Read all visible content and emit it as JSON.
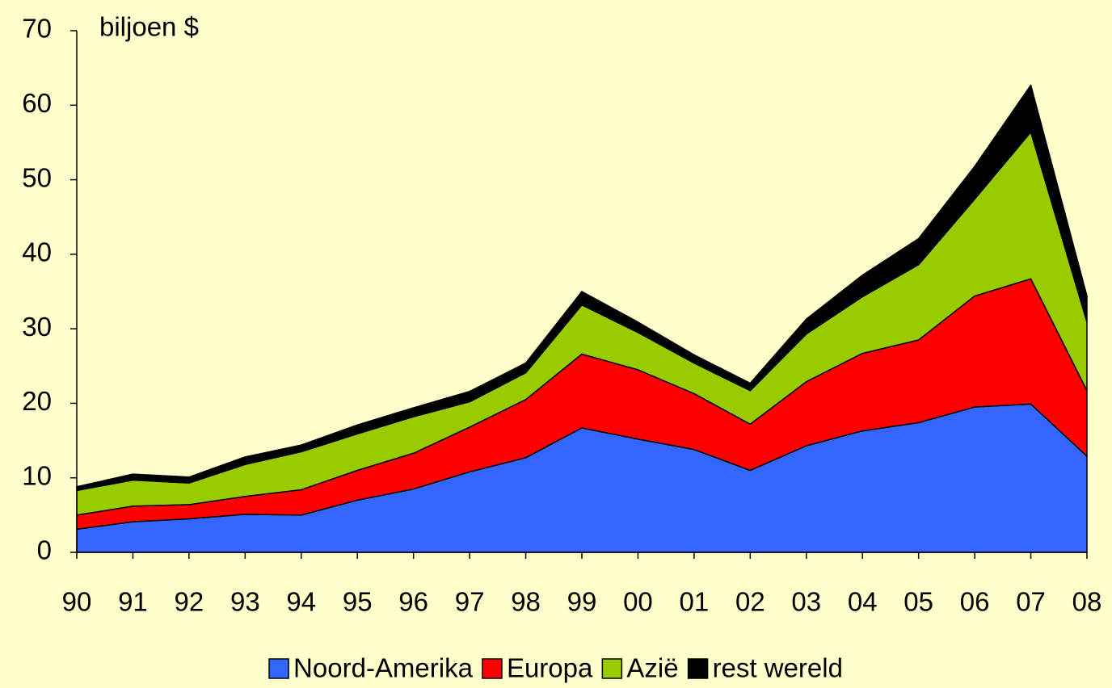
{
  "chart_data": {
    "type": "stacked_area",
    "annotation": "biljoen $",
    "categories": [
      "90",
      "91",
      "92",
      "93",
      "94",
      "95",
      "96",
      "97",
      "98",
      "99",
      "00",
      "01",
      "02",
      "03",
      "04",
      "05",
      "06",
      "07",
      "08"
    ],
    "series": [
      {
        "name": "Noord-Amerika",
        "color": "#3366ff",
        "values": [
          3.1,
          4.1,
          4.5,
          5.1,
          5.0,
          7.0,
          8.5,
          10.8,
          12.7,
          16.7,
          15.2,
          13.8,
          11.0,
          14.3,
          16.3,
          17.4,
          19.5,
          19.9,
          12.9
        ]
      },
      {
        "name": "Europa",
        "color": "#ff0000",
        "values": [
          1.9,
          2.1,
          1.9,
          2.4,
          3.4,
          4.0,
          4.8,
          6.0,
          7.8,
          9.9,
          9.3,
          7.5,
          6.2,
          8.6,
          10.4,
          11.1,
          14.9,
          16.8,
          8.8
        ]
      },
      {
        "name": "Azië",
        "color": "#99cc00",
        "values": [
          3.3,
          3.5,
          2.9,
          4.3,
          5.1,
          4.9,
          4.9,
          3.4,
          3.6,
          6.6,
          5.0,
          4.1,
          4.5,
          6.4,
          7.6,
          10.1,
          13.0,
          19.7,
          9.2
        ]
      },
      {
        "name": "rest wereld",
        "color": "#000000",
        "values": [
          0.5,
          0.8,
          0.8,
          1.0,
          0.9,
          1.2,
          1.2,
          1.4,
          1.3,
          1.8,
          1.4,
          1.1,
          1.0,
          2.0,
          2.9,
          3.5,
          4.4,
          6.3,
          3.5
        ]
      }
    ],
    "ylim": [
      0,
      70
    ],
    "yticks": [
      0,
      10,
      20,
      30,
      40,
      50,
      60,
      70
    ],
    "legend": "bottom"
  }
}
